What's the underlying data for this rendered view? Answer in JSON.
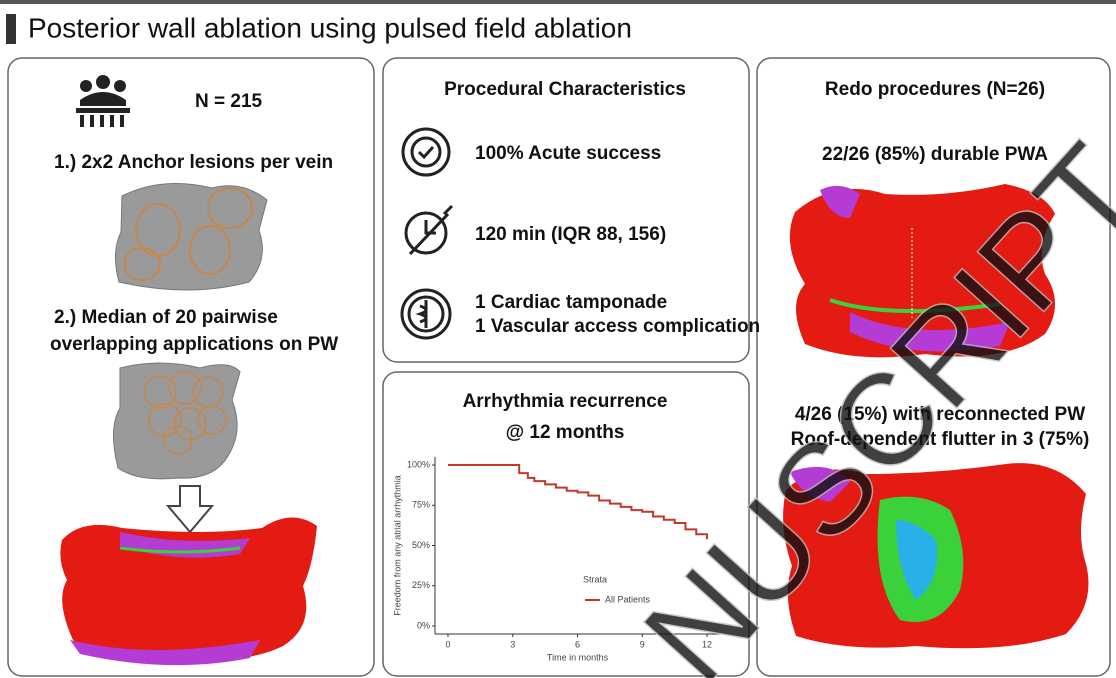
{
  "header": {
    "title": "Posterior wall ablation using pulsed field ablation"
  },
  "left_panel": {
    "n_label": "N = 215",
    "step1": "1.) 2x2 Anchor lesions per vein",
    "step2": [
      "2.)  Median of 20 pairwise",
      "overlapping applications on PW"
    ]
  },
  "procedural": {
    "title": "Procedural Characteristics",
    "items": [
      [
        "100% Acute success"
      ],
      [
        "120 min (IQR 88, 156)"
      ],
      [
        "1 Cardiac tamponade",
        "1 Vascular access complication"
      ]
    ]
  },
  "recurrence": {
    "title": [
      "Arrhythmia recurrence",
      "@ 12 months"
    ]
  },
  "redo": {
    "title": "Redo procedures (N=26)",
    "durable": "22/26 (85%) durable PWA",
    "reconnected": [
      "4/26 (15%) with reconnected PW",
      "Roof-dependent flutter in 3 (75%)"
    ]
  },
  "watermark": "NUSCRIPT",
  "chart_data": {
    "type": "line",
    "x_label": "Time in months",
    "y_label": "Freedom from any atrial arrhythmia",
    "legend_title": "Strata",
    "x": [
      0,
      3,
      3.3,
      3.7,
      4,
      4.5,
      5,
      5.5,
      6,
      6.5,
      7,
      7.5,
      8,
      8.5,
      9,
      9.5,
      10,
      10.5,
      11,
      11.5,
      12
    ],
    "series": [
      {
        "name": "All Patients",
        "color": "#c0392b",
        "values": [
          100,
          100,
          95,
          92,
          90,
          88,
          86,
          84,
          83,
          81,
          78,
          76,
          74,
          72,
          71,
          68,
          66,
          64,
          60,
          57,
          54
        ]
      }
    ],
    "xlim": [
      -0.6,
      12.6
    ],
    "ylim": [
      -5,
      105
    ],
    "xticks": [
      0,
      3,
      6,
      9,
      12
    ],
    "yticks": [
      {
        "value": 0,
        "label": "0%"
      },
      {
        "value": 25,
        "label": "25%"
      },
      {
        "value": 50,
        "label": "50%"
      },
      {
        "value": 75,
        "label": "75%"
      },
      {
        "value": 100,
        "label": "100%"
      }
    ],
    "grid": false
  }
}
